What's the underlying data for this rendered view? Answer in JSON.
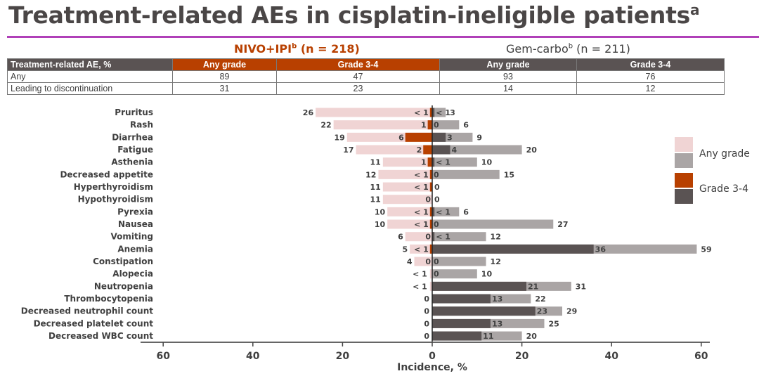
{
  "title": "Treatment-related AEs in cisplatin-ineligible patients",
  "title_sup": "a",
  "arms": {
    "nivo": {
      "label": "NIVO+IPI",
      "sup": "b",
      "n": " (n = 218)"
    },
    "gem": {
      "label": "Gem-carbo",
      "sup": "b",
      "n": " (n = 211)"
    }
  },
  "table": {
    "headers": [
      "Treatment-related AE, %",
      "Any grade",
      "Grade 3-4",
      "Any grade",
      "Grade 3-4"
    ],
    "rows": [
      [
        "Any",
        "89",
        "47",
        "93",
        "76"
      ],
      [
        "Leading to discontinuation",
        "31",
        "23",
        "14",
        "12"
      ]
    ]
  },
  "legend": {
    "any": "Any grade",
    "g34": "Grade 3-4"
  },
  "colors": {
    "nivo_any": "#f0d4d4",
    "nivo_g34": "#b84000",
    "gem_any": "#aaa5a5",
    "gem_g34": "#5a5353",
    "accent": "#b040b8"
  },
  "chart_data": {
    "type": "bar",
    "orientation": "horizontal-diverging",
    "xlabel": "Incidence, %",
    "xlim": [
      -60,
      60
    ],
    "xticks": [
      "60",
      "40",
      "20",
      "0",
      "20",
      "40",
      "60"
    ],
    "categories": [
      "Pruritus",
      "Rash",
      "Diarrhea",
      "Fatigue",
      "Asthenia",
      "Decreased appetite",
      "Hyperthyroidism",
      "Hypothyroidism",
      "Pyrexia",
      "Nausea",
      "Vomiting",
      "Anemia",
      "Constipation",
      "Alopecia",
      "Neutropenia",
      "Thrombocytopenia",
      "Decreased neutrophil count",
      "Decreased platelet count",
      "Decreased WBC count"
    ],
    "series": [
      {
        "name": "NIVO+IPI Any grade",
        "side": "left",
        "values": [
          "26",
          "22",
          "19",
          "17",
          "11",
          "12",
          "11",
          "11",
          "10",
          "10",
          "6",
          "5",
          "4",
          "< 1",
          "< 1",
          "0",
          "0",
          "0",
          "0"
        ]
      },
      {
        "name": "NIVO+IPI Grade 3-4",
        "side": "left",
        "values": [
          "< 1",
          "1",
          "6",
          "2",
          "1",
          "< 1",
          "< 1",
          "0",
          "< 1",
          "< 1",
          "0",
          "< 1",
          "0",
          "",
          "",
          "",
          "",
          "",
          ""
        ]
      },
      {
        "name": "Gem-carbo Any grade",
        "side": "right",
        "values": [
          "3",
          "6",
          "9",
          "20",
          "10",
          "15",
          "0",
          "0",
          "6",
          "27",
          "12",
          "59",
          "12",
          "10",
          "31",
          "22",
          "29",
          "25",
          "20"
        ]
      },
      {
        "name": "Gem-carbo Grade 3-4",
        "side": "right",
        "values": [
          "< 1",
          "0",
          "3",
          "4",
          "< 1",
          "0",
          "",
          "",
          "< 1",
          "0",
          "< 1",
          "36",
          "0",
          "0",
          "21",
          "13",
          "23",
          "13",
          "11"
        ]
      }
    ]
  }
}
